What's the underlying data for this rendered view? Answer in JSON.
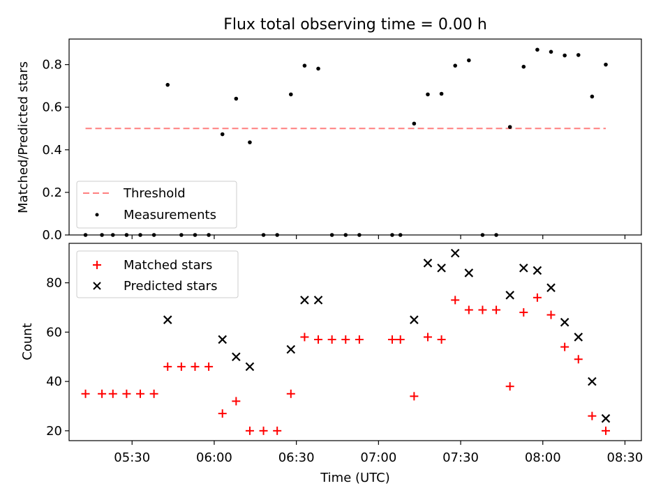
{
  "chart_data": [
    {
      "type": "scatter",
      "title": "Flux total observing time = 0.00 h",
      "xlabel": "",
      "ylabel": "Matched/Predicted stars",
      "ylim": [
        0,
        0.92
      ],
      "yticks": [
        "0.0",
        "0.2",
        "0.4",
        "0.6",
        "0.8"
      ],
      "ytick_values": [
        0.0,
        0.2,
        0.4,
        0.6,
        0.8
      ],
      "xlim": [
        "05:07",
        "08:36"
      ],
      "legend_position": "lower-left",
      "threshold": {
        "name": "Threshold",
        "y": 0.5,
        "x_start": "05:13",
        "x_end": "08:23",
        "color": "#ff7f7f",
        "style": "dashed"
      },
      "series": [
        {
          "name": "Measurements",
          "color": "#000000",
          "marker": "dot",
          "x": [
            "05:13",
            "05:19",
            "05:23",
            "05:28",
            "05:33",
            "05:38",
            "05:43",
            "05:48",
            "05:53",
            "05:58",
            "06:03",
            "06:08",
            "06:13",
            "06:18",
            "06:23",
            "06:28",
            "06:33",
            "06:38",
            "06:43",
            "06:48",
            "06:53",
            "07:05",
            "07:08",
            "07:13",
            "07:18",
            "07:23",
            "07:28",
            "07:33",
            "07:38",
            "07:43",
            "07:48",
            "07:53",
            "07:58",
            "08:03",
            "08:08",
            "08:13",
            "08:18",
            "08:23"
          ],
          "y": [
            0.0,
            0.0,
            0.0,
            0.0,
            0.0,
            0.0,
            0.705,
            0.0,
            0.0,
            0.0,
            0.473,
            0.64,
            0.435,
            0.0,
            0.0,
            0.66,
            0.795,
            0.781,
            0.0,
            0.0,
            0.0,
            0.0,
            0.0,
            0.523,
            0.66,
            0.663,
            0.795,
            0.82,
            0.0,
            0.0,
            0.507,
            0.79,
            0.87,
            0.86,
            0.843,
            0.845,
            0.65,
            0.8
          ]
        }
      ]
    },
    {
      "type": "scatter",
      "title": "",
      "xlabel": "Time (UTC)",
      "ylabel": "Count",
      "ylim": [
        16,
        96
      ],
      "yticks": [
        "20",
        "40",
        "60",
        "80"
      ],
      "ytick_values": [
        20,
        40,
        60,
        80
      ],
      "xlim": [
        "05:07",
        "08:36"
      ],
      "xticks": [
        "05:30",
        "06:00",
        "06:30",
        "07:00",
        "07:30",
        "08:00",
        "08:30"
      ],
      "legend_position": "upper-left",
      "series": [
        {
          "name": "Matched stars",
          "color": "#ff0000",
          "marker": "plus",
          "x": [
            "05:13",
            "05:19",
            "05:23",
            "05:28",
            "05:33",
            "05:38",
            "05:43",
            "05:48",
            "05:53",
            "05:58",
            "06:03",
            "06:08",
            "06:13",
            "06:18",
            "06:23",
            "06:28",
            "06:33",
            "06:38",
            "06:43",
            "06:48",
            "06:53",
            "07:05",
            "07:08",
            "07:13",
            "07:18",
            "07:23",
            "07:28",
            "07:33",
            "07:38",
            "07:43",
            "07:48",
            "07:53",
            "07:58",
            "08:03",
            "08:08",
            "08:13",
            "08:18",
            "08:23"
          ],
          "y": [
            35,
            35,
            35,
            35,
            35,
            35,
            46,
            46,
            46,
            46,
            27,
            32,
            20,
            20,
            20,
            35,
            58,
            57,
            57,
            57,
            57,
            57,
            57,
            34,
            58,
            57,
            73,
            69,
            69,
            69,
            38,
            68,
            74,
            67,
            54,
            49,
            26,
            20
          ]
        },
        {
          "name": "Predicted stars",
          "color": "#000000",
          "marker": "x",
          "x": [
            "05:43",
            "06:03",
            "06:08",
            "06:13",
            "06:28",
            "06:33",
            "06:38",
            "07:13",
            "07:18",
            "07:23",
            "07:28",
            "07:33",
            "07:48",
            "07:53",
            "07:58",
            "08:03",
            "08:08",
            "08:13",
            "08:18",
            "08:23"
          ],
          "y": [
            65,
            57,
            50,
            46,
            53,
            73,
            73,
            65,
            88,
            86,
            92,
            84,
            75,
            86,
            85,
            78,
            64,
            58,
            40,
            25
          ]
        }
      ]
    }
  ]
}
